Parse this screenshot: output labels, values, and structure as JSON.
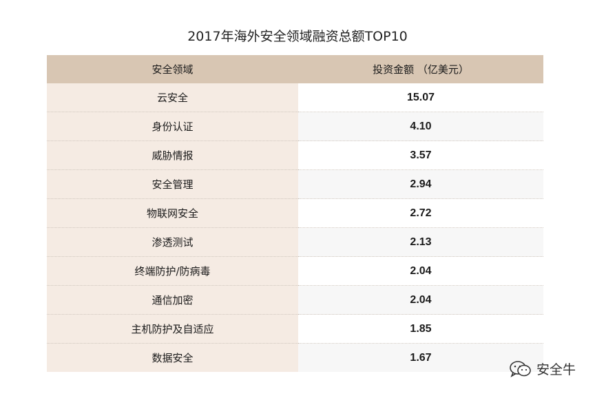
{
  "chart_data": {
    "type": "table",
    "title": "2017年海外安全领域融资总额TOP10",
    "columns": [
      "安全领域",
      "投资金额 （亿美元）"
    ],
    "rows": [
      {
        "category": "云安全",
        "value": "15.07"
      },
      {
        "category": "身份认证",
        "value": "4.10"
      },
      {
        "category": "威胁情报",
        "value": "3.57"
      },
      {
        "category": "安全管理",
        "value": "2.94"
      },
      {
        "category": "物联网安全",
        "value": "2.72"
      },
      {
        "category": "渗透测试",
        "value": "2.13"
      },
      {
        "category": "终端防护/防病毒",
        "value": "2.04"
      },
      {
        "category": "通信加密",
        "value": "2.04"
      },
      {
        "category": "主机防护及自适应",
        "value": "1.85"
      },
      {
        "category": "数据安全",
        "value": "1.67"
      }
    ]
  },
  "watermark": {
    "text": "安全牛",
    "icon": "wechat-icon"
  },
  "colors": {
    "header_bg": "#d8c6b3",
    "category_bg": "#f5ebe3",
    "value_bg_alt": "#f7f7f7"
  }
}
